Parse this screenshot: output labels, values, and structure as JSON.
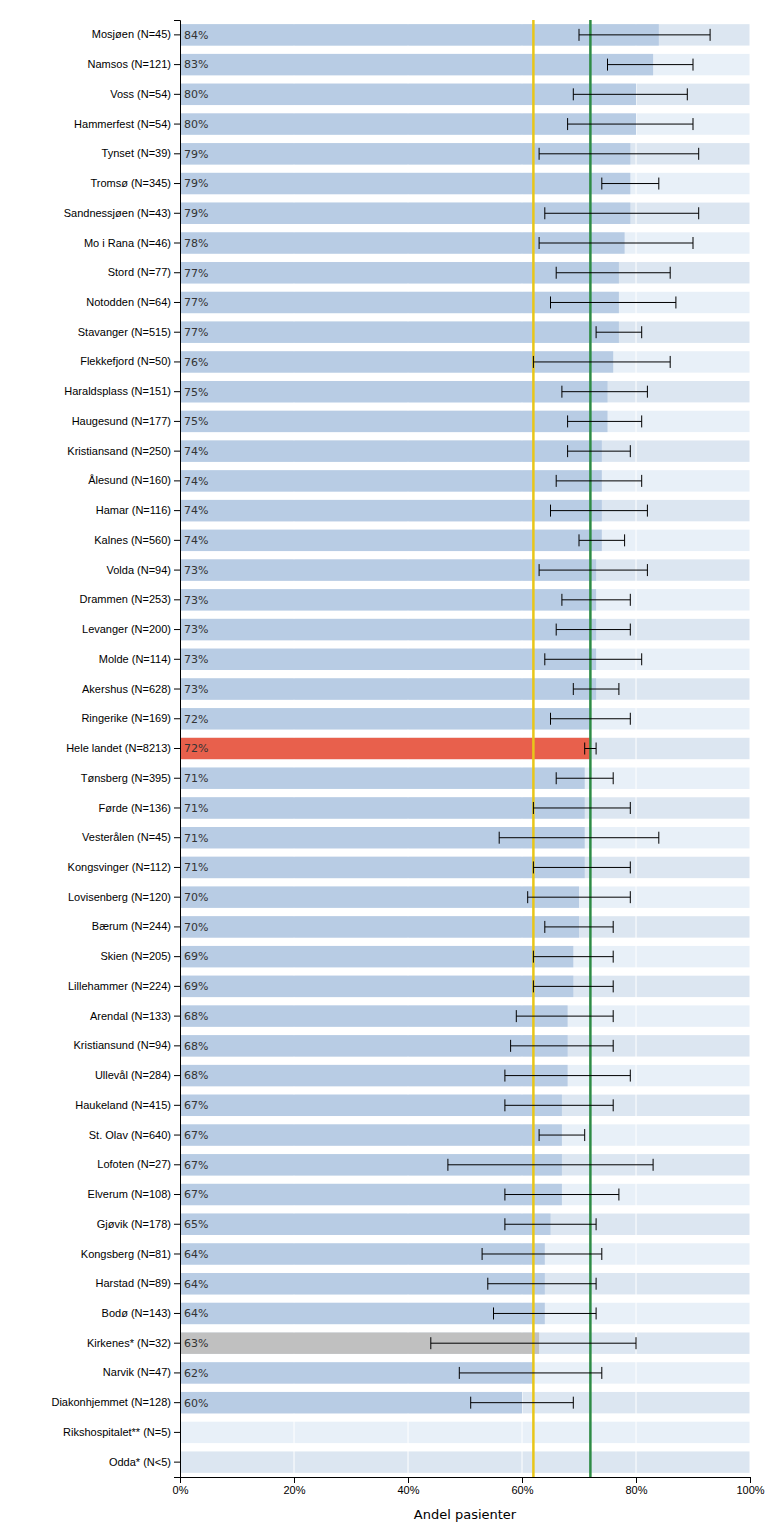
{
  "chart_data": {
    "type": "bar",
    "orientation": "horizontal",
    "categories": [
      "Mosjøen (N=45)",
      "Namsos (N=121)",
      "Voss (N=54)",
      "Hammerfest (N=54)",
      "Tynset (N=39)",
      "Tromsø (N=345)",
      "Sandnessjøen (N=43)",
      "Mo i Rana (N=46)",
      "Stord (N=77)",
      "Notodden (N=64)",
      "Stavanger (N=515)",
      "Flekkefjord (N=50)",
      "Haraldsplass (N=151)",
      "Haugesund (N=177)",
      "Kristiansand (N=250)",
      "Ålesund (N=160)",
      "Hamar (N=116)",
      "Kalnes (N=560)",
      "Volda (N=94)",
      "Drammen (N=253)",
      "Levanger (N=200)",
      "Molde (N=114)",
      "Akershus (N=628)",
      "Ringerike (N=169)",
      "Hele landet (N=8213)",
      "Tønsberg (N=395)",
      "Førde (N=136)",
      "Vesterålen (N=45)",
      "Kongsvinger (N=112)",
      "Lovisenberg (N=120)",
      "Bærum (N=244)",
      "Skien (N=205)",
      "Lillehammer (N=224)",
      "Arendal (N=133)",
      "Kristiansund (N=94)",
      "Ullevål (N=284)",
      "Haukeland (N=415)",
      "St. Olav (N=640)",
      "Lofoten (N=27)",
      "Elverum (N=108)",
      "Gjøvik (N=178)",
      "Kongsberg (N=81)",
      "Harstad (N=89)",
      "Bodø (N=143)",
      "Kirkenes* (N=32)",
      "Narvik (N=47)",
      "Diakonhjemmet (N=128)",
      "Rikshospitalet** (N=5)",
      "Odda* (N<5)"
    ],
    "values": [
      0.84,
      0.83,
      0.8,
      0.8,
      0.79,
      0.79,
      0.79,
      0.78,
      0.77,
      0.77,
      0.77,
      0.76,
      0.75,
      0.75,
      0.74,
      0.74,
      0.74,
      0.74,
      0.73,
      0.73,
      0.73,
      0.73,
      0.73,
      0.72,
      0.72,
      0.71,
      0.71,
      0.71,
      0.71,
      0.7,
      0.7,
      0.69,
      0.69,
      0.68,
      0.68,
      0.68,
      0.67,
      0.67,
      0.67,
      0.67,
      0.65,
      0.64,
      0.64,
      0.64,
      0.63,
      0.62,
      0.6,
      null,
      null
    ],
    "value_labels": [
      "84%",
      "83%",
      "80%",
      "80%",
      "79%",
      "79%",
      "79%",
      "78%",
      "77%",
      "77%",
      "77%",
      "76%",
      "75%",
      "75%",
      "74%",
      "74%",
      "74%",
      "74%",
      "73%",
      "73%",
      "73%",
      "73%",
      "73%",
      "72%",
      "72%",
      "71%",
      "71%",
      "71%",
      "71%",
      "70%",
      "70%",
      "69%",
      "69%",
      "68%",
      "68%",
      "68%",
      "67%",
      "67%",
      "67%",
      "67%",
      "65%",
      "64%",
      "64%",
      "64%",
      "63%",
      "62%",
      "60%",
      null,
      null
    ],
    "ci_low": [
      0.7,
      0.75,
      0.69,
      0.68,
      0.63,
      0.74,
      0.64,
      0.63,
      0.66,
      0.65,
      0.73,
      0.62,
      0.67,
      0.68,
      0.68,
      0.66,
      0.65,
      0.7,
      0.63,
      0.67,
      0.66,
      0.64,
      0.69,
      0.65,
      0.71,
      0.66,
      0.62,
      0.56,
      0.62,
      0.61,
      0.64,
      0.62,
      0.62,
      0.59,
      0.58,
      0.57,
      0.57,
      0.63,
      0.47,
      0.57,
      0.57,
      0.53,
      0.54,
      0.55,
      0.44,
      0.49,
      0.51,
      null,
      null
    ],
    "ci_high": [
      0.93,
      0.9,
      0.89,
      0.9,
      0.91,
      0.84,
      0.91,
      0.9,
      0.86,
      0.87,
      0.81,
      0.86,
      0.82,
      0.81,
      0.79,
      0.81,
      0.82,
      0.78,
      0.82,
      0.79,
      0.79,
      0.81,
      0.77,
      0.79,
      0.73,
      0.76,
      0.79,
      0.84,
      0.79,
      0.79,
      0.76,
      0.76,
      0.76,
      0.76,
      0.76,
      0.79,
      0.76,
      0.71,
      0.83,
      0.77,
      0.73,
      0.74,
      0.73,
      0.73,
      0.8,
      0.74,
      0.69,
      null,
      null
    ],
    "colors": [
      "#b8cce4",
      "#b8cce4",
      "#b8cce4",
      "#b8cce4",
      "#b8cce4",
      "#b8cce4",
      "#b8cce4",
      "#b8cce4",
      "#b8cce4",
      "#b8cce4",
      "#b8cce4",
      "#b8cce4",
      "#b8cce4",
      "#b8cce4",
      "#b8cce4",
      "#b8cce4",
      "#b8cce4",
      "#b8cce4",
      "#b8cce4",
      "#b8cce4",
      "#b8cce4",
      "#b8cce4",
      "#b8cce4",
      "#b8cce4",
      "#e8604c",
      "#b8cce4",
      "#b8cce4",
      "#b8cce4",
      "#b8cce4",
      "#b8cce4",
      "#b8cce4",
      "#b8cce4",
      "#b8cce4",
      "#b8cce4",
      "#b8cce4",
      "#b8cce4",
      "#b8cce4",
      "#b8cce4",
      "#b8cce4",
      "#b8cce4",
      "#b8cce4",
      "#b8cce4",
      "#b8cce4",
      "#b8cce4",
      "#c0c0c0",
      "#b8cce4",
      "#b8cce4",
      "#b8cce4",
      "#b8cce4"
    ],
    "reference_lines": [
      {
        "value": 0.62,
        "color": "#e8c619"
      },
      {
        "value": 0.72,
        "color": "#2e8b45"
      }
    ],
    "xlabel": "Andel pasienter",
    "xlim": [
      0,
      1.0
    ],
    "xticks": [
      {
        "value": 0.0,
        "label": "0%"
      },
      {
        "value": 0.2,
        "label": "20%"
      },
      {
        "value": 0.4,
        "label": "40%"
      },
      {
        "value": 0.6,
        "label": "60%"
      },
      {
        "value": 0.8,
        "label": "80%"
      },
      {
        "value": 1.0,
        "label": "100%"
      }
    ],
    "grid": true,
    "data_labels": true
  }
}
